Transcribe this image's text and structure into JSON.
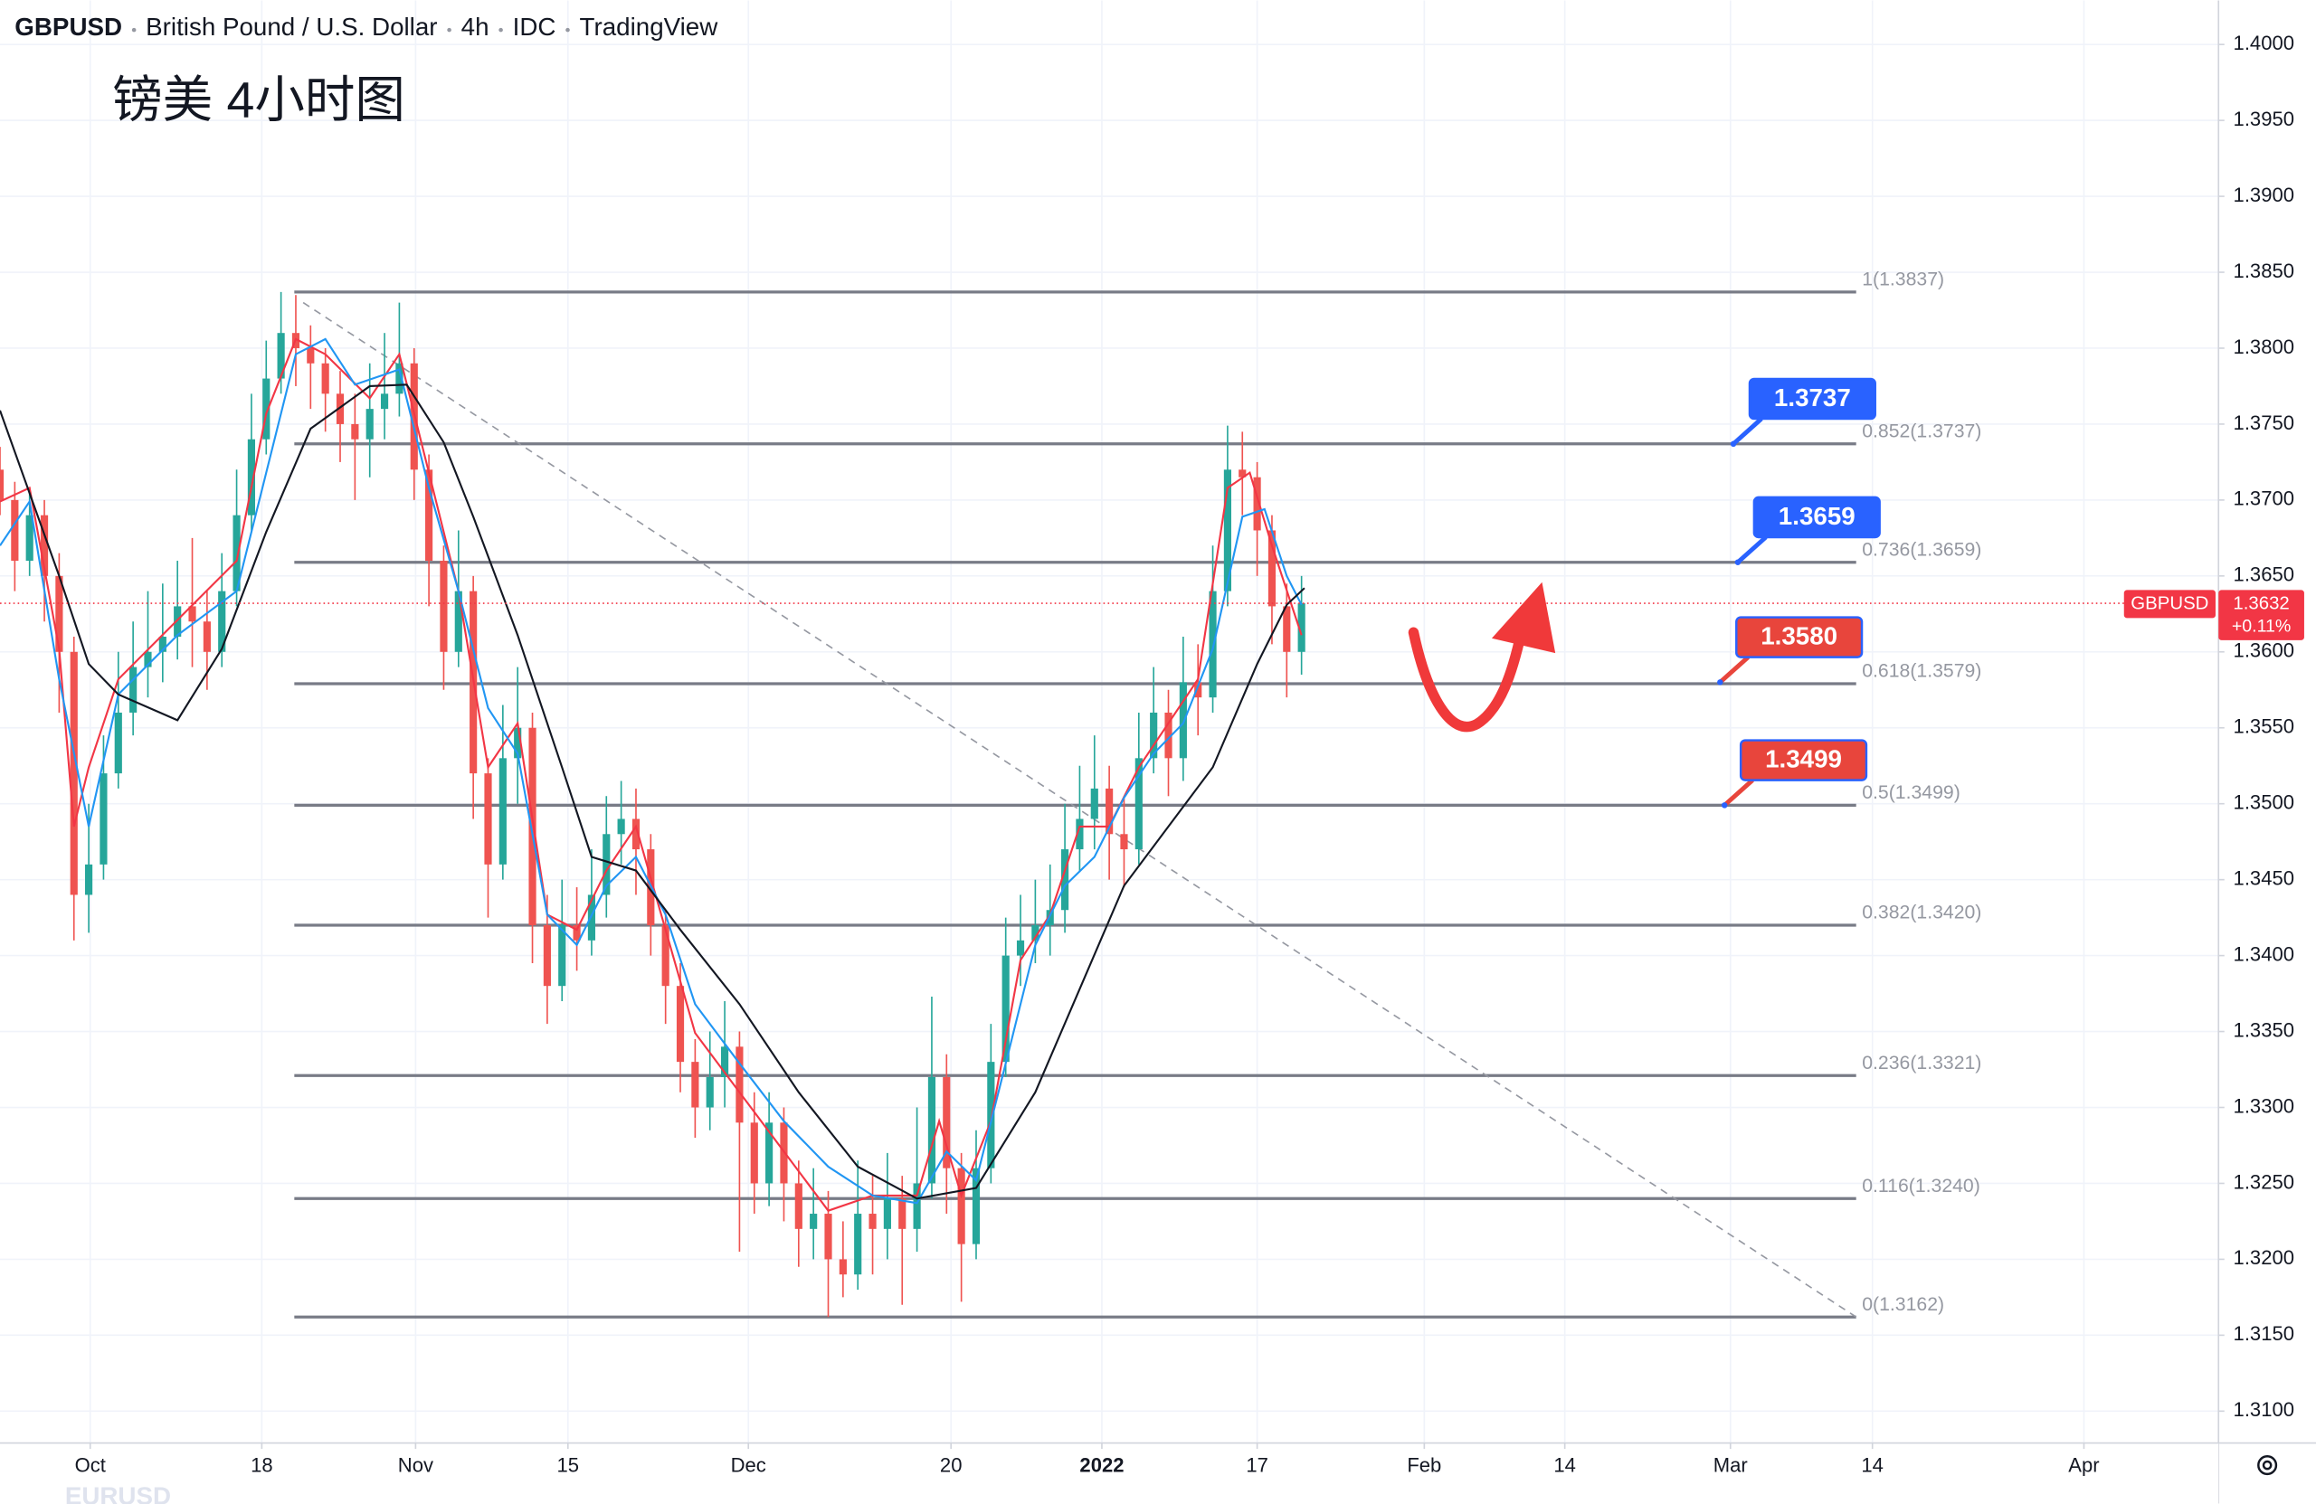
{
  "header": {
    "symbol": "GBPUSD",
    "name": "British Pound / U.S. Dollar",
    "interval": "4h",
    "source": "IDC",
    "brand": "TradingView"
  },
  "annotation_title": "镑美 4小时图",
  "watermark": "EURUSD",
  "chart_data": {
    "type": "candlestick",
    "x": [
      0,
      1,
      2,
      3,
      4,
      5,
      6,
      7,
      8,
      9,
      10,
      11,
      12,
      13,
      14,
      15,
      16,
      17,
      18,
      19,
      20,
      21,
      22,
      23,
      24,
      25,
      26,
      27,
      28,
      29,
      30,
      31,
      32,
      33,
      34,
      35,
      36,
      37,
      38,
      39,
      40,
      41,
      42,
      43,
      44,
      45,
      46,
      47,
      48,
      49,
      50,
      51,
      52,
      53,
      54,
      55,
      56,
      57,
      58,
      59,
      60,
      61,
      62,
      63,
      64,
      65,
      66,
      67,
      68,
      69,
      70,
      71,
      72,
      73,
      74,
      75,
      76,
      77,
      78,
      79,
      80,
      81,
      82,
      83,
      84,
      85,
      86,
      87,
      88
    ],
    "open": [
      1.372,
      1.37,
      1.366,
      1.369,
      1.365,
      1.36,
      1.344,
      1.346,
      1.352,
      1.356,
      1.359,
      1.36,
      1.361,
      1.363,
      1.362,
      1.36,
      1.364,
      1.369,
      1.374,
      1.378,
      1.381,
      1.38,
      1.379,
      1.377,
      1.375,
      1.374,
      1.376,
      1.377,
      1.379,
      1.372,
      1.366,
      1.36,
      1.364,
      1.352,
      1.346,
      1.353,
      1.355,
      1.342,
      1.338,
      1.342,
      1.341,
      1.344,
      1.348,
      1.349,
      1.347,
      1.342,
      1.338,
      1.333,
      1.33,
      1.332,
      1.334,
      1.329,
      1.325,
      1.329,
      1.325,
      1.322,
      1.323,
      1.32,
      1.319,
      1.323,
      1.322,
      1.324,
      1.322,
      1.325,
      1.332,
      1.326,
      1.321,
      1.326,
      1.333,
      1.34,
      1.341,
      1.342,
      1.343,
      1.347,
      1.349,
      1.351,
      1.348,
      1.347,
      1.353,
      1.356,
      1.353,
      1.358,
      1.357,
      1.364,
      1.372,
      1.3715,
      1.368,
      1.363,
      1.36
    ],
    "high": [
      1.3735,
      1.3712,
      1.3705,
      1.37,
      1.3665,
      1.361,
      1.35,
      1.3545,
      1.36,
      1.362,
      1.364,
      1.3645,
      1.366,
      1.3675,
      1.364,
      1.3665,
      1.372,
      1.377,
      1.3805,
      1.3837,
      1.3835,
      1.3815,
      1.38,
      1.3785,
      1.377,
      1.379,
      1.381,
      1.383,
      1.38,
      1.373,
      1.367,
      1.368,
      1.365,
      1.353,
      1.3565,
      1.359,
      1.356,
      1.344,
      1.345,
      1.3445,
      1.347,
      1.3505,
      1.3515,
      1.351,
      1.348,
      1.343,
      1.3395,
      1.3345,
      1.335,
      1.337,
      1.335,
      1.331,
      1.331,
      1.33,
      1.3265,
      1.326,
      1.3245,
      1.3225,
      1.3265,
      1.3255,
      1.327,
      1.3255,
      1.33,
      1.3373,
      1.3335,
      1.327,
      1.3285,
      1.3355,
      1.3425,
      1.344,
      1.345,
      1.346,
      1.35,
      1.3525,
      1.3545,
      1.3525,
      1.3505,
      1.356,
      1.359,
      1.3575,
      1.361,
      1.3605,
      1.367,
      1.3749,
      1.3745,
      1.3725,
      1.369,
      1.3645,
      1.365
    ],
    "low": [
      1.369,
      1.364,
      1.365,
      1.362,
      1.356,
      1.341,
      1.3415,
      1.345,
      1.351,
      1.3545,
      1.357,
      1.358,
      1.3595,
      1.359,
      1.3575,
      1.359,
      1.363,
      1.368,
      1.373,
      1.377,
      1.3775,
      1.376,
      1.3745,
      1.3725,
      1.37,
      1.3715,
      1.374,
      1.3755,
      1.37,
      1.363,
      1.3575,
      1.359,
      1.349,
      1.3425,
      1.345,
      1.35,
      1.3395,
      1.3355,
      1.337,
      1.339,
      1.34,
      1.3425,
      1.346,
      1.344,
      1.34,
      1.3355,
      1.331,
      1.328,
      1.3285,
      1.33,
      1.3205,
      1.323,
      1.3235,
      1.3225,
      1.3195,
      1.32,
      1.3162,
      1.3175,
      1.318,
      1.319,
      1.32,
      1.317,
      1.3205,
      1.324,
      1.323,
      1.3172,
      1.32,
      1.325,
      1.332,
      1.338,
      1.3395,
      1.34,
      1.3415,
      1.3455,
      1.347,
      1.345,
      1.3445,
      1.346,
      1.352,
      1.3505,
      1.3515,
      1.3545,
      1.356,
      1.363,
      1.369,
      1.365,
      1.3605,
      1.357,
      1.3585
    ],
    "close": [
      1.37,
      1.366,
      1.369,
      1.365,
      1.36,
      1.344,
      1.346,
      1.352,
      1.356,
      1.359,
      1.36,
      1.361,
      1.363,
      1.362,
      1.36,
      1.364,
      1.369,
      1.374,
      1.378,
      1.381,
      1.38,
      1.379,
      1.377,
      1.375,
      1.374,
      1.376,
      1.377,
      1.379,
      1.372,
      1.366,
      1.36,
      1.364,
      1.352,
      1.346,
      1.353,
      1.355,
      1.342,
      1.338,
      1.342,
      1.341,
      1.344,
      1.348,
      1.349,
      1.347,
      1.342,
      1.338,
      1.333,
      1.33,
      1.332,
      1.334,
      1.329,
      1.325,
      1.329,
      1.325,
      1.322,
      1.323,
      1.32,
      1.319,
      1.323,
      1.322,
      1.324,
      1.322,
      1.325,
      1.332,
      1.326,
      1.321,
      1.326,
      1.333,
      1.34,
      1.341,
      1.342,
      1.343,
      1.347,
      1.349,
      1.351,
      1.348,
      1.347,
      1.353,
      1.356,
      1.353,
      1.358,
      1.357,
      1.364,
      1.372,
      1.3715,
      1.368,
      1.363,
      1.36,
      1.3632
    ],
    "up_color": "#26a69a",
    "down_color": "#ef5350",
    "moving_averages": [
      {
        "color": "#f23645",
        "x": [
          0,
          2,
          4,
          5,
          6,
          8,
          12,
          16,
          18,
          20,
          22,
          25,
          27,
          29,
          31,
          33,
          35,
          37,
          39,
          41,
          43,
          45,
          47,
          50,
          53,
          56,
          59,
          62,
          63.5,
          65,
          67,
          69,
          71,
          73,
          75,
          77,
          79,
          81,
          83,
          84.5,
          86,
          88
        ],
        "values": [
          1.3699,
          1.3708,
          1.3602,
          1.3485,
          1.3524,
          1.3582,
          1.3621,
          1.366,
          1.3757,
          1.3806,
          1.3796,
          1.3767,
          1.3796,
          1.3718,
          1.364,
          1.3524,
          1.3553,
          1.3427,
          1.3417,
          1.3456,
          1.3485,
          1.3417,
          1.3349,
          1.331,
          1.3271,
          1.3232,
          1.3242,
          1.3242,
          1.3291,
          1.3242,
          1.3291,
          1.3397,
          1.3427,
          1.3485,
          1.3485,
          1.3524,
          1.3553,
          1.3582,
          1.3708,
          1.3718,
          1.367,
          1.3611
        ]
      },
      {
        "color": "#2196f3",
        "x": [
          0,
          2,
          4,
          6,
          8,
          12,
          16,
          18,
          20,
          22,
          24,
          27,
          29,
          31,
          33,
          35,
          37,
          39,
          41,
          43,
          45,
          47,
          50,
          53,
          56,
          59,
          62,
          64,
          66,
          68,
          70,
          72,
          74,
          76,
          78,
          80,
          82,
          84,
          85.5,
          87,
          88
        ],
        "values": [
          1.367,
          1.3699,
          1.3582,
          1.3485,
          1.3572,
          1.3611,
          1.364,
          1.3718,
          1.3796,
          1.3806,
          1.3776,
          1.3786,
          1.3708,
          1.364,
          1.3563,
          1.3533,
          1.3427,
          1.3407,
          1.3446,
          1.3465,
          1.3427,
          1.3368,
          1.3329,
          1.3291,
          1.3261,
          1.3242,
          1.3237,
          1.3271,
          1.3252,
          1.3329,
          1.3407,
          1.3446,
          1.3465,
          1.3504,
          1.3533,
          1.3553,
          1.3602,
          1.3689,
          1.3694,
          1.365,
          1.3631
        ]
      },
      {
        "color": "#131722",
        "x": [
          0,
          4,
          6,
          8,
          12,
          15,
          18,
          21,
          25,
          27.5,
          30,
          32,
          35,
          38,
          40,
          43,
          46,
          50,
          54,
          58,
          62,
          66,
          70,
          73,
          76,
          79,
          82,
          85,
          87,
          88.2
        ],
        "values": [
          1.3759,
          1.365,
          1.3592,
          1.3572,
          1.3555,
          1.3602,
          1.3679,
          1.3747,
          1.3775,
          1.3776,
          1.3738,
          1.3689,
          1.3611,
          1.3524,
          1.3465,
          1.3456,
          1.3417,
          1.3368,
          1.331,
          1.3261,
          1.324,
          1.3247,
          1.331,
          1.3378,
          1.3446,
          1.3485,
          1.3524,
          1.3592,
          1.3631,
          1.3642
        ]
      }
    ],
    "xlim": [
      0,
      150
    ],
    "ylim": [
      1.3079,
      1.4029
    ],
    "xticks": [
      {
        "value": 6.1,
        "label": "Oct"
      },
      {
        "value": 17.7,
        "label": "18"
      },
      {
        "value": 28.1,
        "label": "Nov"
      },
      {
        "value": 38.4,
        "label": "15"
      },
      {
        "value": 50.6,
        "label": "Dec"
      },
      {
        "value": 64.3,
        "label": "20"
      },
      {
        "value": 74.5,
        "label": "2022"
      },
      {
        "value": 85.0,
        "label": "17"
      },
      {
        "value": 96.3,
        "label": "Feb"
      },
      {
        "value": 105.8,
        "label": "14"
      },
      {
        "value": 117.0,
        "label": "Mar"
      },
      {
        "value": 126.6,
        "label": "14"
      },
      {
        "value": 140.9,
        "label": "Apr"
      }
    ],
    "yticks": [
      {
        "value": 1.4,
        "label": "1.4000"
      },
      {
        "value": 1.395,
        "label": "1.3950"
      },
      {
        "value": 1.39,
        "label": "1.3900"
      },
      {
        "value": 1.385,
        "label": "1.3850"
      },
      {
        "value": 1.38,
        "label": "1.3800"
      },
      {
        "value": 1.375,
        "label": "1.3750"
      },
      {
        "value": 1.37,
        "label": "1.3700"
      },
      {
        "value": 1.365,
        "label": "1.3650"
      },
      {
        "value": 1.36,
        "label": "1.3600"
      },
      {
        "value": 1.355,
        "label": "1.3550"
      },
      {
        "value": 1.35,
        "label": "1.3500"
      },
      {
        "value": 1.345,
        "label": "1.3450"
      },
      {
        "value": 1.34,
        "label": "1.3400"
      },
      {
        "value": 1.335,
        "label": "1.3350"
      },
      {
        "value": 1.33,
        "label": "1.3300"
      },
      {
        "value": 1.325,
        "label": "1.3250"
      },
      {
        "value": 1.32,
        "label": "1.3200"
      },
      {
        "value": 1.315,
        "label": "1.3150"
      },
      {
        "value": 1.31,
        "label": "1.3100"
      }
    ],
    "grid": true,
    "last_price": {
      "symbol": "GBPUSD",
      "value": 1.3632,
      "label": "1.3632",
      "change": {
        "value": 0.11,
        "label": "+0.11%"
      },
      "color": "#f23645"
    },
    "fibonacci": {
      "x": [
        19.9,
        125.5
      ],
      "color": "#787b86",
      "levels": [
        {
          "value": 1.3837,
          "label": "1(1.3837)"
        },
        {
          "value": 1.3737,
          "label": "0.852(1.3737)"
        },
        {
          "value": 1.3659,
          "label": "0.736(1.3659)"
        },
        {
          "value": 1.3579,
          "label": "0.618(1.3579)"
        },
        {
          "value": 1.3499,
          "label": "0.5(1.3499)"
        },
        {
          "value": 1.342,
          "label": "0.382(1.3420)"
        },
        {
          "value": 1.3321,
          "label": "0.236(1.3321)"
        },
        {
          "value": 1.324,
          "label": "0.116(1.3240)"
        },
        {
          "value": 1.3162,
          "label": "0(1.3162)"
        }
      ]
    },
    "trendline": {
      "x": [
        20.5,
        125.5
      ],
      "values": [
        1.383,
        1.3162
      ]
    },
    "callouts": [
      {
        "x": 117.2,
        "value": 1.3737,
        "color": "#2962ff"
      },
      {
        "x": 117.5,
        "value": 1.3659,
        "color": "#2962ff"
      },
      {
        "x": 116.3,
        "value": 1.358,
        "label": "1.3580",
        "color": "#e8453c"
      },
      {
        "x": 116.6,
        "value": 1.3499,
        "color": "#e8453c"
      }
    ]
  }
}
